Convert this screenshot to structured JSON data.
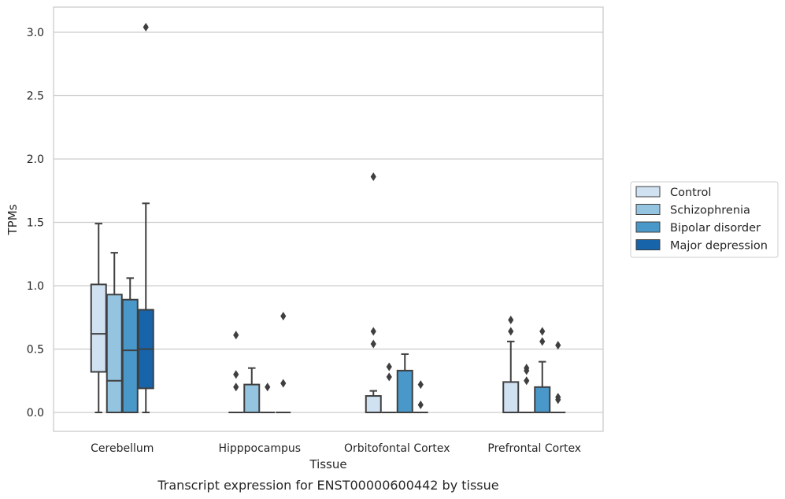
{
  "chart_data": {
    "type": "boxplot",
    "caption": "Transcript expression for ENST00000600442 by tissue",
    "xlabel": "Tissue",
    "ylabel": "TPMs",
    "ylim": [
      -0.15,
      3.2
    ],
    "yticks": [
      0.0,
      0.5,
      1.0,
      1.5,
      2.0,
      2.5,
      3.0
    ],
    "ytick_labels": [
      "0.0",
      "0.5",
      "1.0",
      "1.5",
      "2.0",
      "2.5",
      "3.0"
    ],
    "grid": true,
    "legend_position": "right",
    "categories": [
      "Cerebellum",
      "Hipppocampus",
      "Orbitofontal Cortex",
      "Prefrontal Cortex"
    ],
    "series": [
      {
        "name": "Control",
        "color": "#d0e1f2",
        "boxes": [
          {
            "q1": 0.32,
            "median": 0.62,
            "q3": 1.01,
            "whislo": 0.0,
            "whishi": 1.49,
            "fliers": []
          },
          {
            "q1": 0.0,
            "median": 0.0,
            "q3": 0.0,
            "whislo": 0.0,
            "whishi": 0.0,
            "fliers": [
              0.61,
              0.3,
              0.2
            ]
          },
          {
            "q1": 0.0,
            "median": 0.0,
            "q3": 0.13,
            "whislo": 0.0,
            "whishi": 0.17,
            "fliers": [
              1.86,
              0.64,
              0.54
            ]
          },
          {
            "q1": 0.0,
            "median": 0.0,
            "q3": 0.24,
            "whislo": 0.0,
            "whishi": 0.56,
            "fliers": [
              0.73,
              0.64
            ]
          }
        ]
      },
      {
        "name": "Schizophrenia",
        "color": "#94c4df",
        "boxes": [
          {
            "q1": 0.0,
            "median": 0.25,
            "q3": 0.93,
            "whislo": 0.0,
            "whishi": 1.26,
            "fliers": []
          },
          {
            "q1": 0.0,
            "median": 0.0,
            "q3": 0.22,
            "whislo": 0.0,
            "whishi": 0.35,
            "fliers": []
          },
          {
            "q1": 0.0,
            "median": 0.0,
            "q3": 0.0,
            "whislo": 0.0,
            "whishi": 0.0,
            "fliers": [
              0.36,
              0.28
            ]
          },
          {
            "q1": 0.0,
            "median": 0.0,
            "q3": 0.0,
            "whislo": 0.0,
            "whishi": 0.0,
            "fliers": [
              0.35,
              0.33,
              0.25
            ]
          }
        ]
      },
      {
        "name": "Bipolar disorder",
        "color": "#4a98c9",
        "boxes": [
          {
            "q1": 0.0,
            "median": 0.49,
            "q3": 0.89,
            "whislo": 0.0,
            "whishi": 1.06,
            "fliers": []
          },
          {
            "q1": 0.0,
            "median": 0.0,
            "q3": 0.0,
            "whislo": 0.0,
            "whishi": 0.0,
            "fliers": [
              0.2
            ]
          },
          {
            "q1": 0.0,
            "median": 0.0,
            "q3": 0.33,
            "whislo": 0.0,
            "whishi": 0.46,
            "fliers": []
          },
          {
            "q1": 0.0,
            "median": 0.0,
            "q3": 0.2,
            "whislo": 0.0,
            "whishi": 0.4,
            "fliers": [
              0.64,
              0.56
            ]
          }
        ]
      },
      {
        "name": "Major depression",
        "color": "#1764ab",
        "boxes": [
          {
            "q1": 0.19,
            "median": 0.5,
            "q3": 0.81,
            "whislo": 0.0,
            "whishi": 1.65,
            "fliers": [
              3.04
            ]
          },
          {
            "q1": 0.0,
            "median": 0.0,
            "q3": 0.0,
            "whislo": 0.0,
            "whishi": 0.0,
            "fliers": [
              0.76,
              0.23
            ]
          },
          {
            "q1": 0.0,
            "median": 0.0,
            "q3": 0.0,
            "whislo": 0.0,
            "whishi": 0.0,
            "fliers": [
              0.22,
              0.06
            ]
          },
          {
            "q1": 0.0,
            "median": 0.0,
            "q3": 0.0,
            "whislo": 0.0,
            "whishi": 0.0,
            "fliers": [
              0.53,
              0.12,
              0.1
            ]
          }
        ]
      }
    ]
  }
}
